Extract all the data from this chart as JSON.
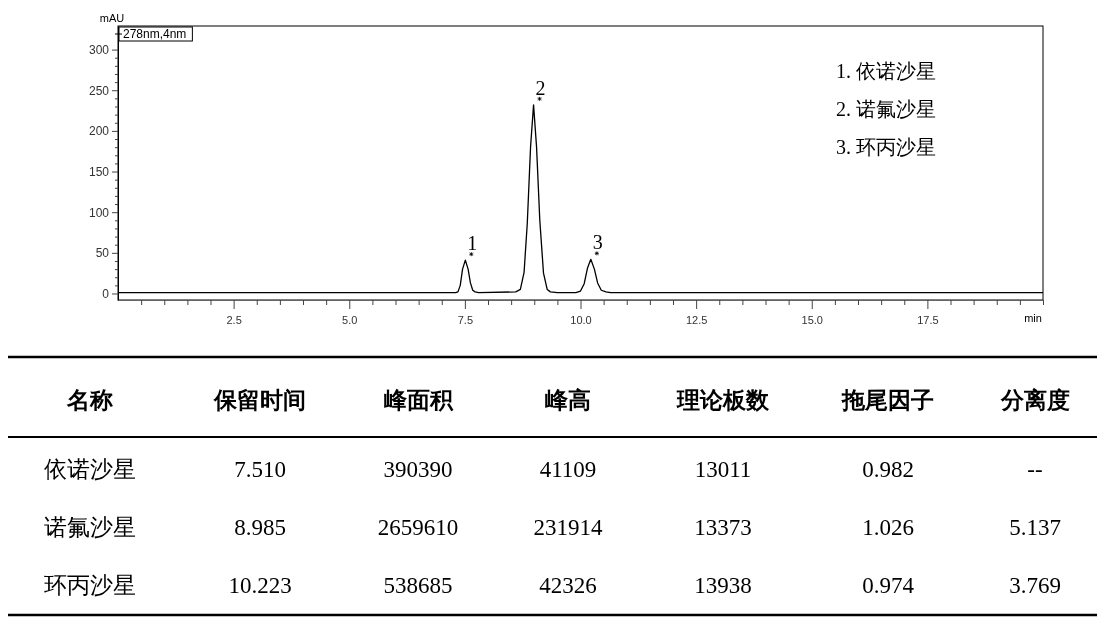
{
  "chart_data": [
    {
      "type": "line",
      "xlabel": "min",
      "ylabel": "mAU",
      "xlim": [
        0,
        20
      ],
      "ylim": [
        -8,
        329
      ],
      "xticks": [
        {
          "value": 0.5,
          "label": null
        },
        {
          "value": 1,
          "label": null
        },
        {
          "value": 1.5,
          "label": null
        },
        {
          "value": 2,
          "label": null
        },
        2.5,
        {
          "value": 3,
          "label": null
        },
        {
          "value": 3.5,
          "label": null
        },
        {
          "value": 4,
          "label": null
        },
        {
          "value": 4.5,
          "label": null
        },
        {
          "value": 5,
          "label": "5.0"
        },
        {
          "value": 5.5,
          "label": null
        },
        {
          "value": 6,
          "label": null
        },
        {
          "value": 6.5,
          "label": null
        },
        {
          "value": 7,
          "label": null
        },
        7.5,
        {
          "value": 8,
          "label": null
        },
        {
          "value": 8.5,
          "label": null
        },
        {
          "value": 9,
          "label": null
        },
        {
          "value": 9.5,
          "label": null
        },
        {
          "value": 10,
          "label": "10.0"
        },
        {
          "value": 10.5,
          "label": null
        },
        {
          "value": 11,
          "label": null
        },
        {
          "value": 11.5,
          "label": null
        },
        {
          "value": 12,
          "label": null
        },
        12.5,
        {
          "value": 13,
          "label": null
        },
        {
          "value": 13.5,
          "label": null
        },
        {
          "value": 14,
          "label": null
        },
        {
          "value": 14.5,
          "label": null
        },
        {
          "value": 15,
          "label": "15.0"
        },
        {
          "value": 15.5,
          "label": null
        },
        {
          "value": 16,
          "label": null
        },
        {
          "value": 16.5,
          "label": null
        },
        {
          "value": 17,
          "label": null
        },
        17.5,
        {
          "value": 18,
          "label": null
        },
        {
          "value": 18.5,
          "label": null
        },
        {
          "value": 19,
          "label": null
        },
        {
          "value": 19.5,
          "label": null
        },
        {
          "value": 20,
          "label": null
        }
      ],
      "yticks": [
        0,
        {
          "value": 10,
          "label": null
        },
        {
          "value": 20,
          "label": null
        },
        {
          "value": 30,
          "label": null
        },
        {
          "value": 40,
          "label": null
        },
        50,
        {
          "value": 60,
          "label": null
        },
        {
          "value": 70,
          "label": null
        },
        {
          "value": 80,
          "label": null
        },
        {
          "value": 90,
          "label": null
        },
        100,
        {
          "value": 110,
          "label": null
        },
        {
          "value": 120,
          "label": null
        },
        {
          "value": 130,
          "label": null
        },
        {
          "value": 140,
          "label": null
        },
        150,
        {
          "value": 160,
          "label": null
        },
        {
          "value": 170,
          "label": null
        },
        {
          "value": 180,
          "label": null
        },
        {
          "value": 190,
          "label": null
        },
        200,
        {
          "value": 210,
          "label": null
        },
        {
          "value": 220,
          "label": null
        },
        {
          "value": 230,
          "label": null
        },
        {
          "value": 240,
          "label": null
        },
        250,
        {
          "value": 260,
          "label": null
        },
        {
          "value": 270,
          "label": null
        },
        {
          "value": 280,
          "label": null
        },
        {
          "value": 290,
          "label": null
        },
        300
      ],
      "legend": "top left",
      "grid": false,
      "series": [
        {
          "name": "278nm,4nm",
          "color": "#000000",
          "x": [
            0,
            2.5,
            6,
            7.2,
            7.3,
            7.35,
            7.4,
            7.45,
            7.51,
            7.57,
            7.62,
            7.67,
            7.72,
            7.8,
            8.6,
            8.7,
            8.78,
            8.85,
            8.92,
            8.985,
            9.05,
            9.12,
            9.2,
            9.28,
            9.35,
            9.5,
            9.9,
            10,
            10.08,
            10.15,
            10.223,
            10.3,
            10.37,
            10.45,
            10.55,
            10.65,
            20
          ],
          "values": [
            1,
            1,
            1,
            1,
            1,
            2,
            10,
            30,
            41,
            30,
            13,
            4,
            2,
            1,
            2,
            5,
            26,
            87,
            180,
            232,
            180,
            90,
            25,
            5,
            2,
            1,
            1,
            3,
            12,
            31,
            42,
            30,
            13,
            4,
            2,
            1,
            1
          ]
        }
      ],
      "annotations": [
        {
          "text": "1",
          "x": 7.51,
          "y": 41
        },
        {
          "text": "2",
          "x": 8.985,
          "y": 232
        },
        {
          "text": "3",
          "x": 10.223,
          "y": 42
        },
        "1.  依诺沙星",
        "2.  诺氟沙星",
        "3.  环丙沙星"
      ]
    },
    {
      "type": "other",
      "categories": [
        "名称",
        "保留时间",
        "峰面积",
        "峰高",
        "理论板数",
        "拖尾因子",
        "分离度"
      ],
      "y_categories": [
        "依诺沙星",
        "诺氟沙星",
        "环丙沙星"
      ],
      "cell_labels": [
        [
          "7.510",
          "390390",
          "41109",
          "13011",
          "0.982",
          "--"
        ],
        [
          "8.985",
          "2659610",
          "231914",
          "13373",
          "1.026",
          "5.137"
        ],
        [
          "10.223",
          "538685",
          "42326",
          "13938",
          "0.974",
          "3.769"
        ]
      ]
    }
  ]
}
